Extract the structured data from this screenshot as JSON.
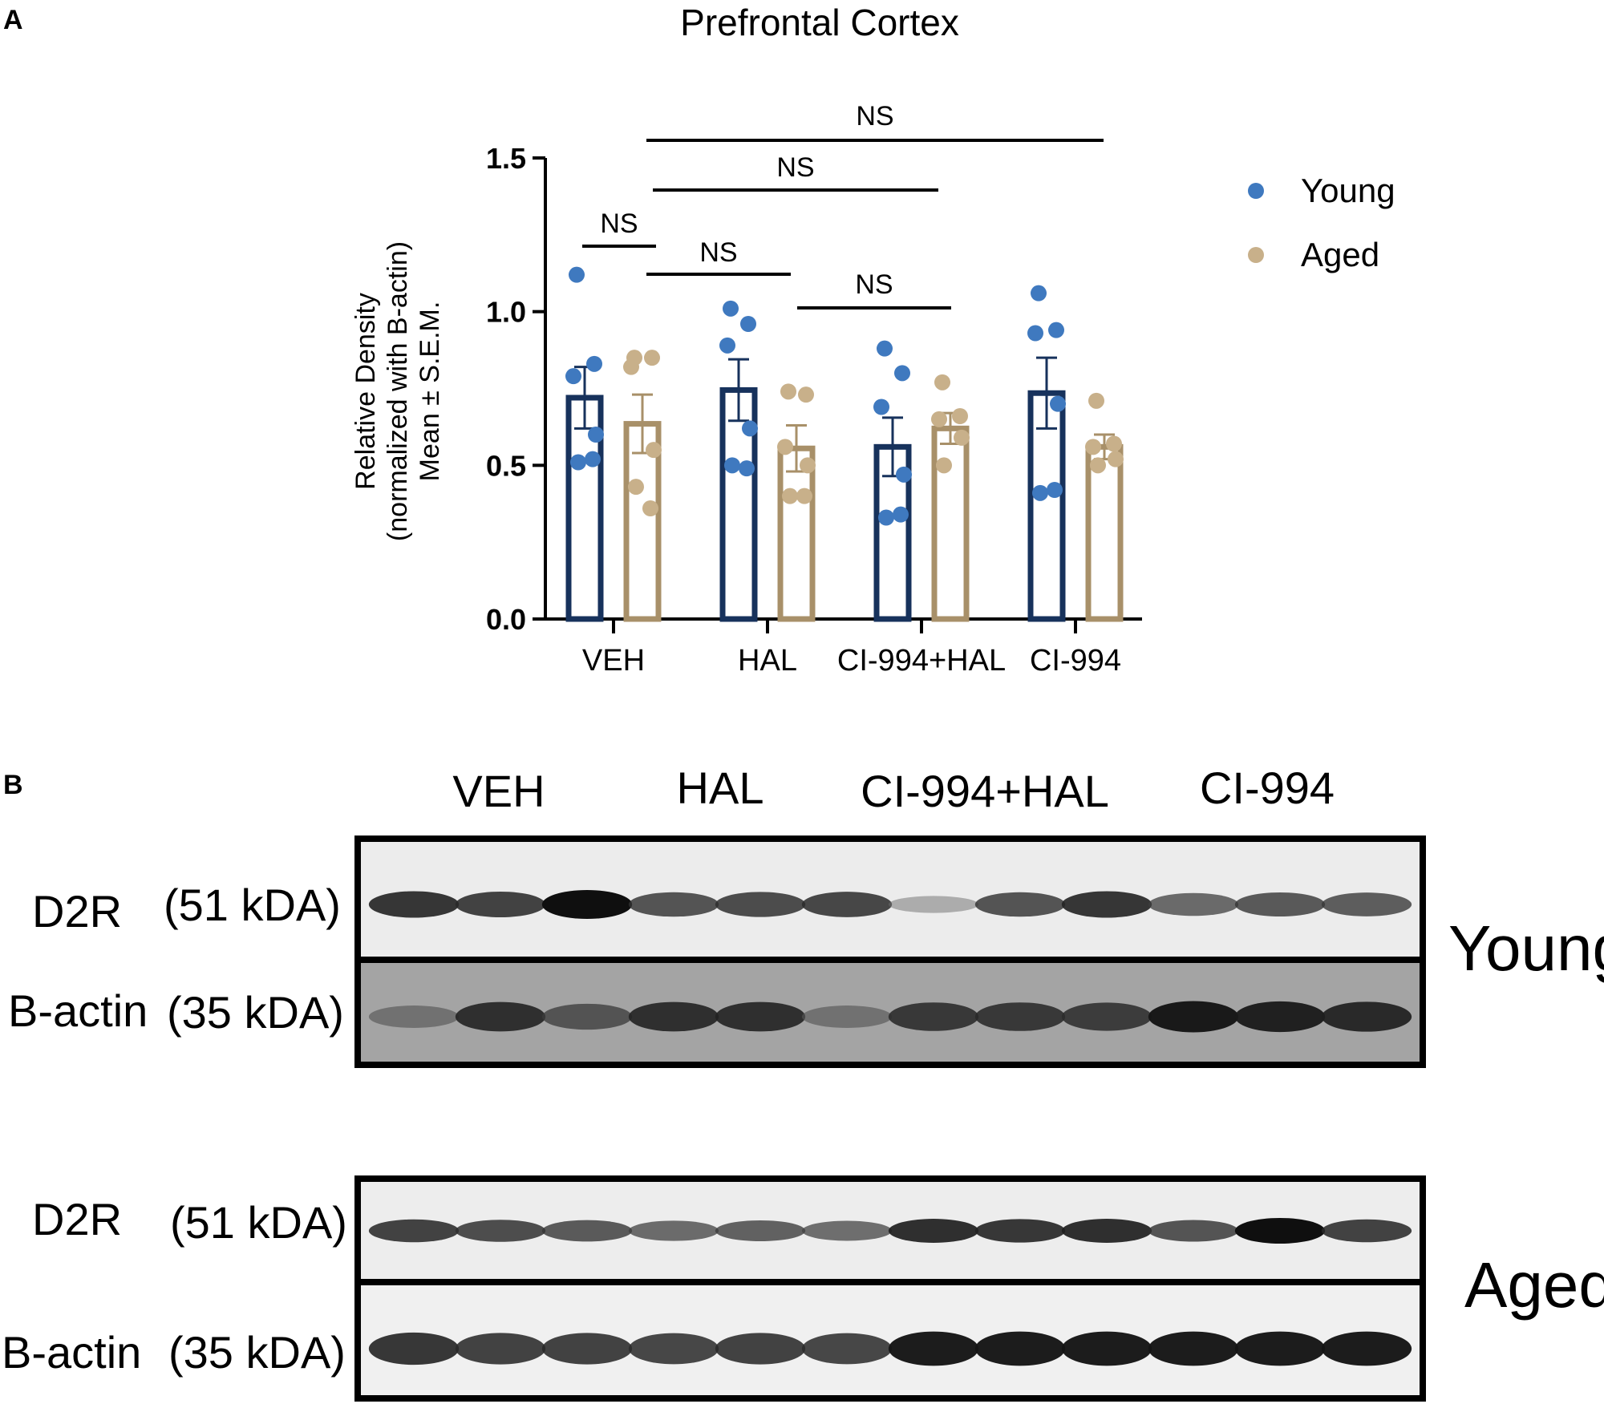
{
  "panel_a": {
    "label": "A"
  },
  "panel_b": {
    "label": "B"
  },
  "chart_data": {
    "type": "bar",
    "title": "Prefrontal Cortex",
    "ylabel_lines": [
      "Relative Density",
      "(normalized with B-actin)",
      "Mean ± S.E.M."
    ],
    "xlabel": "",
    "ylim": [
      0,
      1.5
    ],
    "yticks": [
      "0.0",
      "0.5",
      "1.0",
      "1.5"
    ],
    "categories": [
      "VEH",
      "HAL",
      "CI-994+HAL",
      "CI-994"
    ],
    "legend_position": "right",
    "grid": false,
    "series": [
      {
        "name": "Young",
        "color": "#17325c",
        "dot_color": "#3f79bf",
        "means": [
          0.72,
          0.745,
          0.56,
          0.735
        ],
        "sem": [
          0.1,
          0.1,
          0.095,
          0.115
        ],
        "points": [
          [
            1.12,
            0.83,
            0.79,
            0.6,
            0.51,
            0.52
          ],
          [
            1.01,
            0.96,
            0.89,
            0.62,
            0.5,
            0.49
          ],
          [
            0.88,
            0.8,
            0.69,
            0.47,
            0.33,
            0.34
          ],
          [
            1.06,
            0.94,
            0.93,
            0.7,
            0.41,
            0.42
          ]
        ]
      },
      {
        "name": "Aged",
        "color": "#a89069",
        "dot_color": "#c8b08a",
        "means": [
          0.635,
          0.555,
          0.62,
          0.56
        ],
        "sem": [
          0.095,
          0.075,
          0.05,
          0.04
        ],
        "points": [
          [
            0.85,
            0.85,
            0.82,
            0.55,
            0.43,
            0.36
          ],
          [
            0.74,
            0.73,
            0.56,
            0.5,
            0.4,
            0.4
          ],
          [
            0.77,
            0.66,
            0.65,
            0.59,
            0.5
          ],
          [
            0.71,
            0.57,
            0.56,
            0.52,
            0.5
          ]
        ]
      }
    ],
    "significance": [
      {
        "label": "NS"
      },
      {
        "label": "NS"
      },
      {
        "label": "NS"
      },
      {
        "label": "NS"
      },
      {
        "label": "NS"
      }
    ]
  },
  "blot": {
    "lane_groups": [
      "VEH",
      "HAL",
      "CI-994+HAL",
      "CI-994"
    ],
    "young": {
      "group_label": "Young",
      "d2r_label": "D2R",
      "d2r_kda": "(51 kDA)",
      "actin_label": "B-actin",
      "actin_kda": "(35 kDA)"
    },
    "aged": {
      "group_label": "Aged",
      "d2r_label": "D2R",
      "d2r_kda": "(51 kDA)",
      "actin_label": "B-actin",
      "actin_kda": "(35 kDA)"
    },
    "young_d2r_intensity": [
      0.85,
      0.8,
      1.0,
      0.72,
      0.76,
      0.78,
      0.25,
      0.72,
      0.85,
      0.62,
      0.7,
      0.68
    ],
    "young_actin_intensity": [
      0.45,
      0.85,
      0.65,
      0.85,
      0.85,
      0.45,
      0.8,
      0.8,
      0.78,
      0.95,
      0.92,
      0.88
    ],
    "aged_d2r_intensity": [
      0.8,
      0.75,
      0.7,
      0.62,
      0.66,
      0.6,
      0.88,
      0.85,
      0.88,
      0.72,
      1.0,
      0.8
    ],
    "aged_actin_intensity": [
      0.85,
      0.8,
      0.8,
      0.78,
      0.8,
      0.78,
      0.95,
      0.95,
      0.95,
      0.95,
      0.95,
      0.95
    ]
  }
}
